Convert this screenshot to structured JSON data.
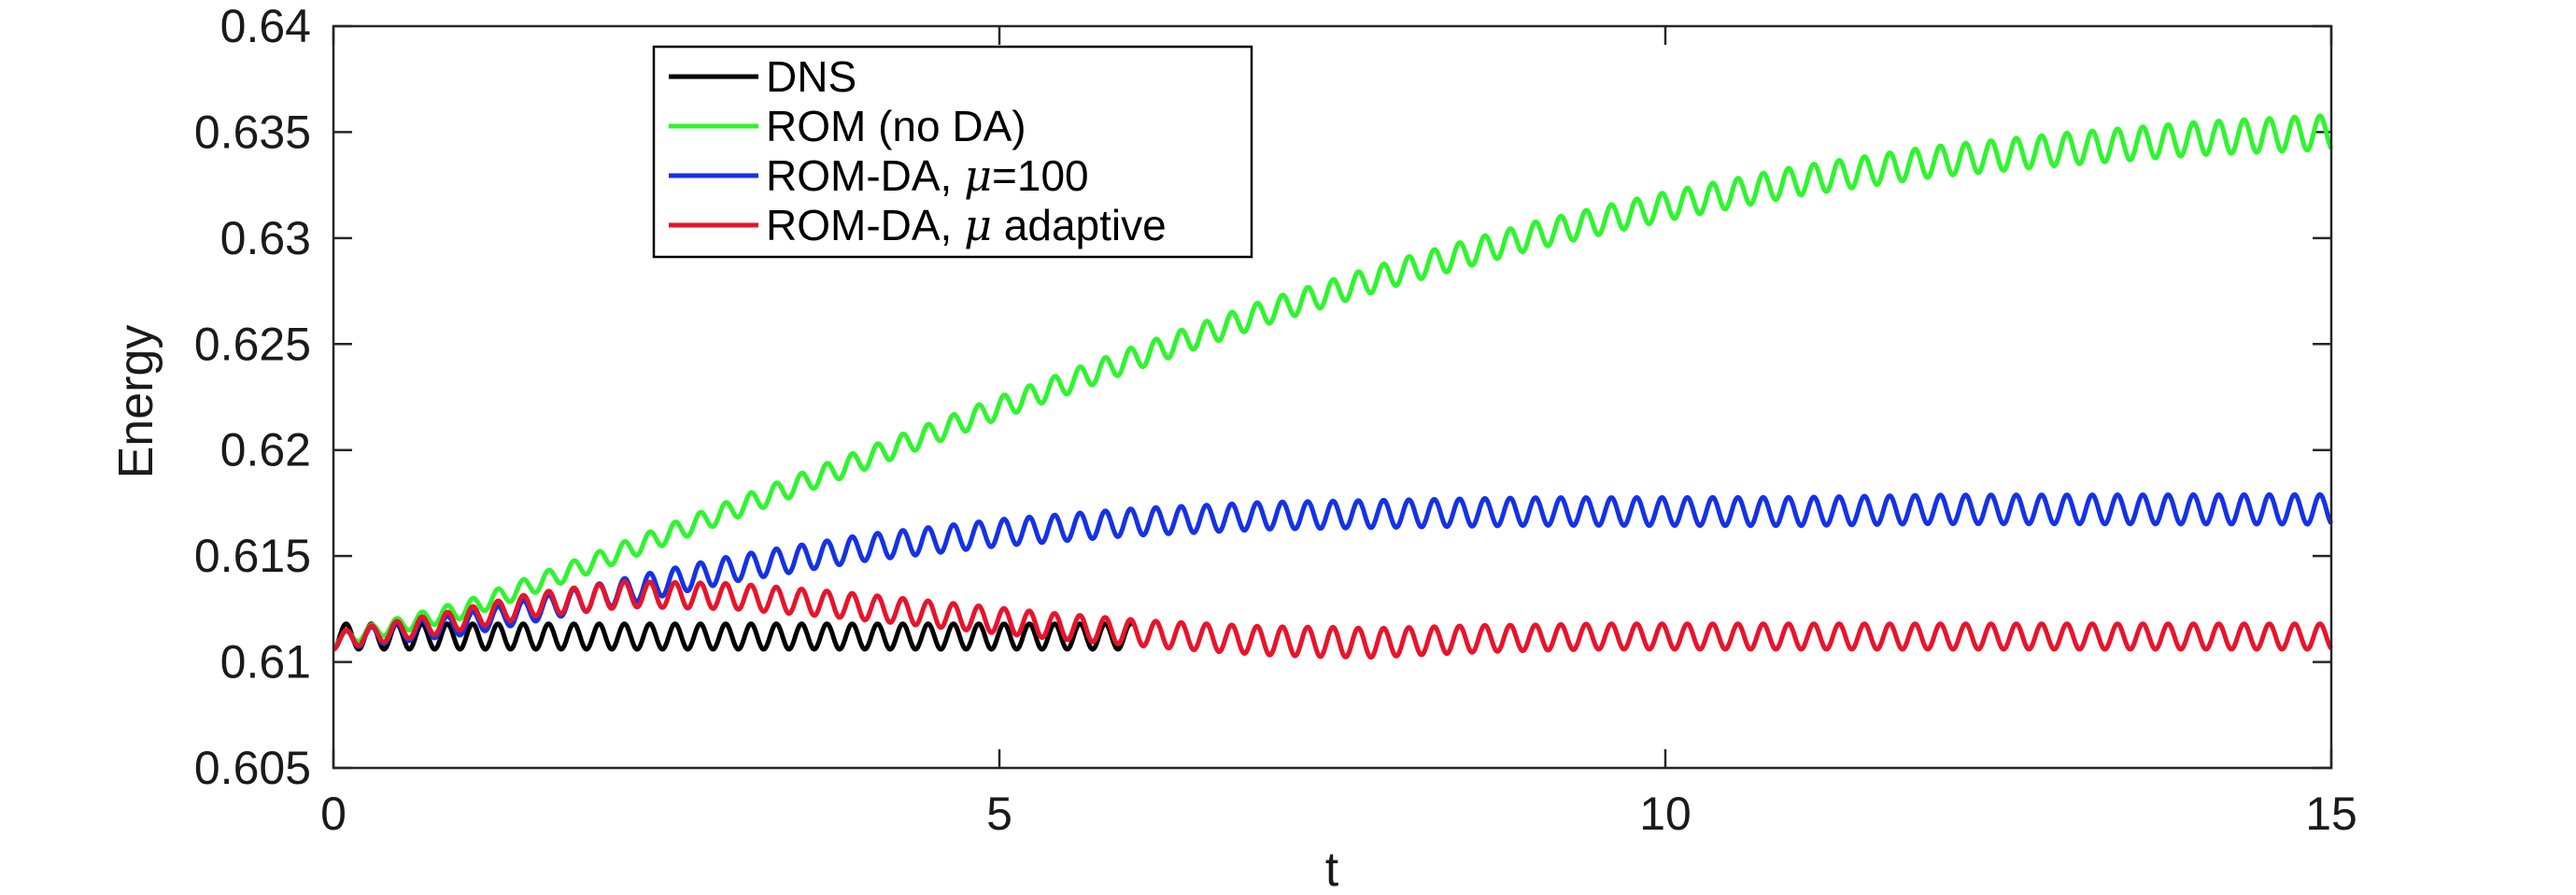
{
  "chart_data": {
    "type": "line",
    "title": "",
    "xlabel": "t",
    "ylabel": "Energy",
    "xlim": [
      0,
      15
    ],
    "ylim": [
      0.605,
      0.64
    ],
    "xticks": [
      0,
      5,
      10,
      15
    ],
    "xtick_labels": [
      "0",
      "5",
      "10",
      "15"
    ],
    "yticks": [
      0.605,
      0.61,
      0.615,
      0.62,
      0.625,
      0.63,
      0.635,
      0.64
    ],
    "ytick_labels": [
      "0.605",
      "0.61",
      "0.615",
      "0.62",
      "0.625",
      "0.63",
      "0.635",
      "0.64"
    ],
    "grid": false,
    "legend_position": "top-left",
    "oscillation_period": 0.19,
    "series": [
      {
        "name": "DNS",
        "color": "#000000",
        "t_end": 6.0,
        "mean": [
          [
            0,
            0.6112
          ],
          [
            6,
            0.6112
          ]
        ],
        "amplitude": [
          [
            0,
            0.0006
          ],
          [
            6,
            0.0006
          ]
        ]
      },
      {
        "name": "ROM (no DA)",
        "color": "#2ef52e",
        "t_end": 15.0,
        "mean": [
          [
            0,
            0.611
          ],
          [
            1,
            0.6125
          ],
          [
            2,
            0.6148
          ],
          [
            3,
            0.6172
          ],
          [
            4,
            0.6196
          ],
          [
            5,
            0.622
          ],
          [
            6,
            0.6243
          ],
          [
            7,
            0.6265
          ],
          [
            8,
            0.6284
          ],
          [
            9,
            0.6301
          ],
          [
            10,
            0.6315
          ],
          [
            11,
            0.6327
          ],
          [
            12,
            0.6336
          ],
          [
            13,
            0.6342
          ],
          [
            14,
            0.6347
          ],
          [
            15,
            0.635
          ]
        ],
        "amplitude": [
          [
            0,
            0.0003
          ],
          [
            1,
            0.0004
          ],
          [
            15,
            0.0008
          ]
        ]
      },
      {
        "name": "ROM-DA, μ=100",
        "color": "#1432e6",
        "t_end": 15.0,
        "mean": [
          [
            0,
            0.611
          ],
          [
            1,
            0.6118
          ],
          [
            2,
            0.6131
          ],
          [
            3,
            0.6144
          ],
          [
            4,
            0.6154
          ],
          [
            5,
            0.6161
          ],
          [
            6,
            0.6166
          ],
          [
            7,
            0.6169
          ],
          [
            8,
            0.617
          ],
          [
            9,
            0.6171
          ],
          [
            10,
            0.6171
          ],
          [
            11,
            0.6171
          ],
          [
            12,
            0.6172
          ],
          [
            13,
            0.6172
          ],
          [
            14,
            0.6172
          ],
          [
            15,
            0.6172
          ]
        ],
        "amplitude": [
          [
            0,
            0.0004
          ],
          [
            2,
            0.0006
          ],
          [
            15,
            0.0007
          ]
        ]
      },
      {
        "name": "ROM-DA, μ adaptive",
        "color": "#e8142a",
        "t_end": 15.0,
        "mean": [
          [
            0,
            0.611
          ],
          [
            0.8,
            0.6118
          ],
          [
            1.5,
            0.6127
          ],
          [
            2.2,
            0.6132
          ],
          [
            3,
            0.6131
          ],
          [
            3.8,
            0.6127
          ],
          [
            4.6,
            0.6122
          ],
          [
            5.4,
            0.6117
          ],
          [
            6.2,
            0.6113
          ],
          [
            7,
            0.611
          ],
          [
            7.8,
            0.6109
          ],
          [
            8.6,
            0.6111
          ],
          [
            9.5,
            0.6112
          ],
          [
            15,
            0.6112
          ]
        ],
        "amplitude": [
          [
            0,
            0.0004
          ],
          [
            2,
            0.0006
          ],
          [
            6,
            0.0006
          ],
          [
            7.5,
            0.0007
          ],
          [
            9,
            0.0006
          ],
          [
            15,
            0.0006
          ]
        ]
      }
    ]
  },
  "legend": {
    "entries": [
      {
        "text": "DNS"
      },
      {
        "text": "ROM (no DA)"
      },
      {
        "pre": "ROM-DA, ",
        "sym": "μ",
        "post": "=100"
      },
      {
        "pre": "ROM-DA, ",
        "sym": "μ",
        "post": " adaptive"
      }
    ]
  }
}
